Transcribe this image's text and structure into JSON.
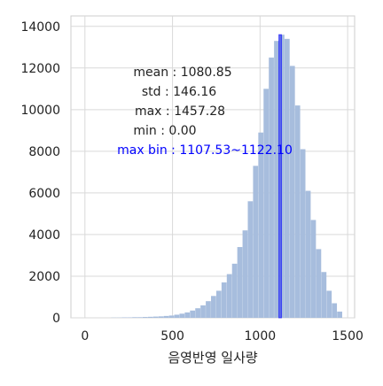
{
  "chart_data": {
    "type": "bar",
    "subtype": "histogram",
    "xlabel": "음영반영 일사량",
    "ylabel": "",
    "title": "",
    "xlim": [
      -80,
      1540
    ],
    "ylim": [
      0,
      14500
    ],
    "grid": true,
    "x_ticks": [
      0,
      500,
      1000,
      1500
    ],
    "y_ticks": [
      0,
      2000,
      4000,
      6000,
      8000,
      10000,
      12000,
      14000
    ],
    "bin_width": 29,
    "bin_starts": [
      150,
      180,
      210,
      240,
      270,
      300,
      330,
      360,
      390,
      420,
      450,
      480,
      510,
      540,
      570,
      600,
      630,
      660,
      690,
      720,
      750,
      780,
      810,
      840,
      870,
      900,
      930,
      960,
      990,
      1020,
      1050,
      1080,
      1110,
      1140,
      1170,
      1200,
      1230,
      1260,
      1290,
      1320,
      1350,
      1380,
      1410,
      1440
    ],
    "counts": [
      10,
      10,
      20,
      20,
      30,
      30,
      40,
      50,
      60,
      70,
      90,
      110,
      150,
      200,
      260,
      350,
      460,
      600,
      800,
      1050,
      1300,
      1700,
      2100,
      2600,
      3400,
      4200,
      5600,
      7300,
      8900,
      11000,
      12500,
      13300,
      13600,
      13400,
      12100,
      10200,
      8100,
      6100,
      4700,
      3300,
      2200,
      1300,
      700,
      300
    ],
    "highlight": {
      "start": 1107.53,
      "end": 1122.1,
      "count": 13600,
      "color": "#0000ff"
    },
    "bar_color": "#a7bddd",
    "stats": [
      {
        "label": "mean",
        "value": "1080.85"
      },
      {
        "label": "std",
        "value": "146.16"
      },
      {
        "label": "max",
        "value": "1457.28"
      },
      {
        "label": "min",
        "value": "0.00"
      }
    ],
    "max_bin": {
      "label": "max bin",
      "value": "1107.53~1122.10"
    }
  }
}
